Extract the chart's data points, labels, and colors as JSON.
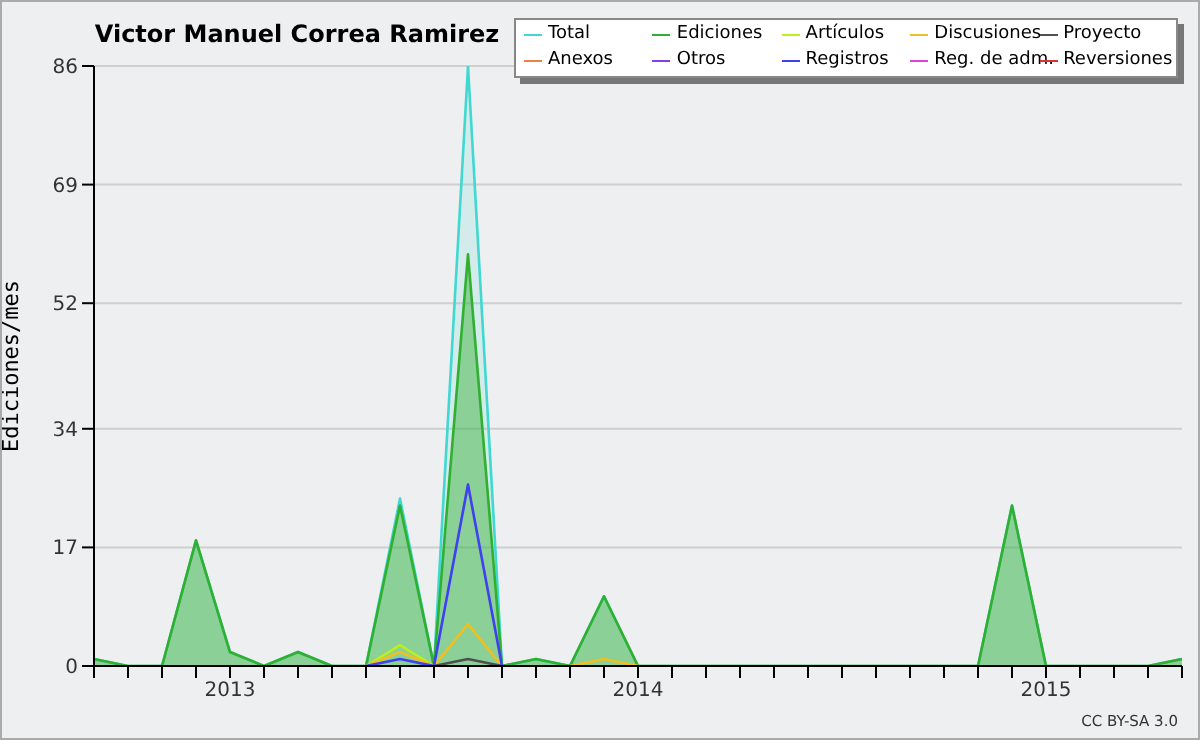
{
  "chart_data": {
    "type": "line",
    "title": "Victor Manuel Correa Ramirez",
    "ylabel": "Ediciones/mes",
    "annotations": [
      "CC BY-SA 3.0"
    ],
    "x": [
      "2012-09",
      "2012-10",
      "2012-11",
      "2012-12",
      "2013-01",
      "2013-02",
      "2013-03",
      "2013-04",
      "2013-05",
      "2013-06",
      "2013-07",
      "2013-08",
      "2013-09",
      "2013-10",
      "2013-11",
      "2013-12",
      "2014-01",
      "2014-02",
      "2014-03",
      "2014-04",
      "2014-05",
      "2014-06",
      "2014-07",
      "2014-08",
      "2014-09",
      "2014-10",
      "2014-11",
      "2014-12",
      "2015-01",
      "2015-02",
      "2015-03",
      "2015-04",
      "2015-05"
    ],
    "xlim": [
      "2012-09",
      "2015-05"
    ],
    "xticks": [
      {
        "value": "2012-09",
        "label": null
      },
      {
        "value": "2012-10",
        "label": null
      },
      {
        "value": "2012-11",
        "label": null
      },
      {
        "value": "2012-12",
        "label": null
      },
      {
        "value": "2013-01",
        "label": "2013"
      },
      {
        "value": "2013-02",
        "label": null
      },
      {
        "value": "2013-03",
        "label": null
      },
      {
        "value": "2013-04",
        "label": null
      },
      {
        "value": "2013-05",
        "label": null
      },
      {
        "value": "2013-06",
        "label": null
      },
      {
        "value": "2013-07",
        "label": null
      },
      {
        "value": "2013-08",
        "label": null
      },
      {
        "value": "2013-09",
        "label": null
      },
      {
        "value": "2013-10",
        "label": null
      },
      {
        "value": "2013-11",
        "label": null
      },
      {
        "value": "2013-12",
        "label": null
      },
      {
        "value": "2014-01",
        "label": "2014"
      },
      {
        "value": "2014-02",
        "label": null
      },
      {
        "value": "2014-03",
        "label": null
      },
      {
        "value": "2014-04",
        "label": null
      },
      {
        "value": "2014-05",
        "label": null
      },
      {
        "value": "2014-06",
        "label": null
      },
      {
        "value": "2014-07",
        "label": null
      },
      {
        "value": "2014-08",
        "label": null
      },
      {
        "value": "2014-09",
        "label": null
      },
      {
        "value": "2014-10",
        "label": null
      },
      {
        "value": "2014-11",
        "label": null
      },
      {
        "value": "2014-12",
        "label": null
      },
      {
        "value": "2015-01",
        "label": "2015"
      },
      {
        "value": "2015-02",
        "label": null
      },
      {
        "value": "2015-03",
        "label": null
      },
      {
        "value": "2015-04",
        "label": null
      },
      {
        "value": "2015-05",
        "label": null
      }
    ],
    "ylim": [
      0,
      86
    ],
    "yticks": [
      0,
      17,
      34,
      52,
      69,
      86
    ],
    "grid": "y",
    "legend": "top right",
    "marker": "none",
    "series": [
      {
        "name": "Total",
        "type": "area",
        "color": "#40d8d0",
        "values": [
          1,
          0,
          0,
          18,
          2,
          0,
          2,
          0,
          0,
          24,
          0,
          86,
          0,
          1,
          0,
          10,
          0,
          0,
          0,
          0,
          0,
          0,
          0,
          0,
          0,
          0,
          0,
          23,
          0,
          0,
          0,
          0,
          1
        ]
      },
      {
        "name": "Ediciones",
        "type": "area",
        "color": "#30b030",
        "values": [
          1,
          0,
          0,
          18,
          2,
          0,
          2,
          0,
          0,
          23,
          0,
          59,
          0,
          1,
          0,
          10,
          0,
          0,
          0,
          0,
          0,
          0,
          0,
          0,
          0,
          0,
          0,
          23,
          0,
          0,
          0,
          0,
          1
        ]
      },
      {
        "name": "Artículos",
        "color": "#b8f020",
        "values": [
          null,
          null,
          null,
          null,
          null,
          null,
          null,
          null,
          0,
          3,
          0,
          null,
          null,
          null,
          null,
          null,
          null,
          null,
          null,
          null,
          null,
          null,
          null,
          null,
          null,
          null,
          null,
          null,
          null,
          null,
          null,
          null,
          null
        ]
      },
      {
        "name": "Discusiones",
        "color": "#f0c020",
        "values": [
          null,
          null,
          null,
          null,
          null,
          null,
          null,
          null,
          0,
          2,
          0,
          6,
          0,
          null,
          0,
          1,
          0,
          null,
          null,
          null,
          null,
          null,
          null,
          null,
          null,
          null,
          null,
          null,
          null,
          null,
          null,
          null,
          null
        ]
      },
      {
        "name": "Proyecto",
        "color": "#505050",
        "values": [
          null,
          null,
          null,
          null,
          null,
          null,
          null,
          null,
          null,
          null,
          0,
          1,
          0,
          null,
          null,
          null,
          null,
          null,
          null,
          null,
          null,
          null,
          null,
          null,
          null,
          null,
          null,
          null,
          null,
          null,
          null,
          null,
          null
        ]
      },
      {
        "name": "Anexos",
        "color": "#f08040",
        "values": [
          null,
          null,
          null,
          null,
          null,
          null,
          null,
          null,
          null,
          null,
          null,
          null,
          null,
          null,
          null,
          null,
          null,
          null,
          null,
          null,
          null,
          null,
          null,
          null,
          null,
          null,
          null,
          null,
          null,
          null,
          null,
          null,
          null
        ]
      },
      {
        "name": "Otros",
        "color": "#8040f0",
        "values": [
          null,
          null,
          null,
          null,
          null,
          null,
          null,
          null,
          null,
          null,
          null,
          null,
          null,
          null,
          null,
          null,
          null,
          null,
          null,
          null,
          null,
          null,
          null,
          null,
          null,
          null,
          null,
          null,
          null,
          null,
          null,
          null,
          null
        ]
      },
      {
        "name": "Registros",
        "color": "#4040f0",
        "values": [
          null,
          null,
          null,
          null,
          null,
          null,
          null,
          null,
          0,
          1,
          0,
          26,
          0,
          null,
          null,
          null,
          null,
          null,
          null,
          null,
          null,
          null,
          null,
          null,
          null,
          null,
          null,
          null,
          null,
          null,
          null,
          null,
          null
        ]
      },
      {
        "name": "Reg. de adm.",
        "color": "#e040e0",
        "values": [
          null,
          null,
          null,
          null,
          null,
          null,
          null,
          null,
          null,
          null,
          null,
          null,
          null,
          null,
          null,
          null,
          null,
          null,
          null,
          null,
          null,
          null,
          null,
          null,
          null,
          null,
          null,
          null,
          null,
          null,
          null,
          null,
          null
        ]
      },
      {
        "name": "Reversiones",
        "color": "#e03030",
        "values": [
          null,
          null,
          null,
          null,
          null,
          null,
          null,
          null,
          null,
          null,
          null,
          null,
          null,
          null,
          null,
          null,
          null,
          null,
          null,
          null,
          null,
          null,
          null,
          null,
          null,
          null,
          null,
          null,
          null,
          null,
          null,
          null,
          null
        ]
      }
    ]
  }
}
